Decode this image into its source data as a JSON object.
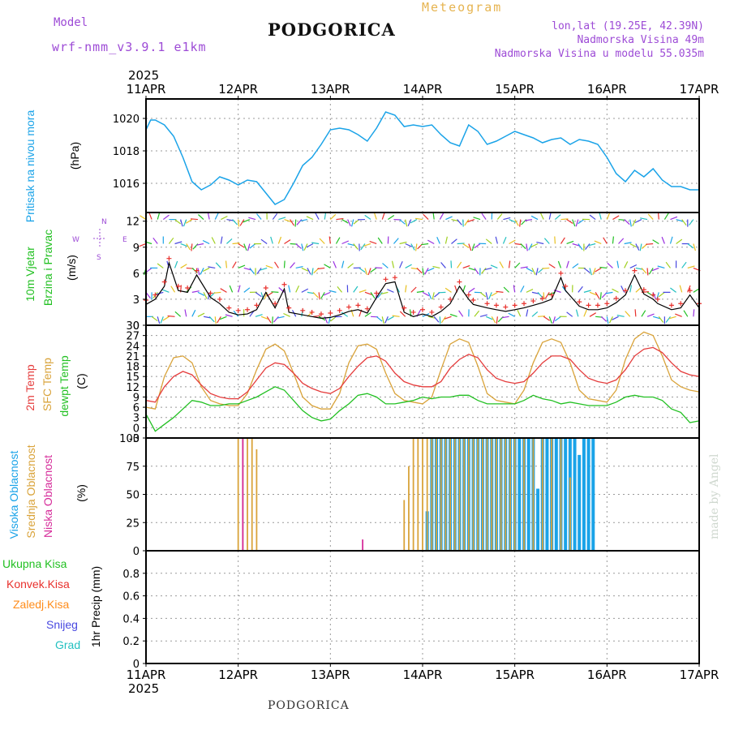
{
  "header": {
    "model_label": "Model",
    "model_name": "wrf-nmm_v3.9.1 e1km",
    "title": "PODGORICA",
    "meteogram": "Meteogram",
    "lonlat": "lon,lat (19.25E, 42.39N)",
    "altitude": "Nadmorska Visina 49m",
    "model_altitude": "Nadmorska Visina u modelu 55.035m"
  },
  "footer": {
    "place": "PODGORICA",
    "made_by": "made by Angel"
  },
  "time_axis": {
    "year": "2025",
    "days": [
      "11APR",
      "12APR",
      "13APR",
      "14APR",
      "15APR",
      "16APR",
      "17APR"
    ]
  },
  "colors": {
    "pressure": "#1aa3e8",
    "wind_speed": "#000000",
    "wind_gust": "#e8302c",
    "temp2m": "#e53c3c",
    "sfc_temp": "#d9a33a",
    "dewpoint": "#22c022",
    "cloud_high": "#1aa3e8",
    "cloud_mid": "#d9a33a",
    "cloud_low": "#d62c9a",
    "precip_total": "#22c022",
    "precip_conv": "#e8302c",
    "precip_frozen": "#ff8c1a",
    "snow": "#4848e0",
    "hail": "#22c0c0",
    "compass": "#9d4bd6"
  },
  "panels": {
    "pressure": {
      "label": "Pritisak na nivou mora",
      "unit": "(hPa)"
    },
    "wind": {
      "label1": "10m Vjetar",
      "label2": "Brzina i Pravac",
      "unit": "(m/s)",
      "compass": {
        "n": "N",
        "s": "S",
        "e": "E",
        "w": "W"
      }
    },
    "temperature": {
      "label1": "2m Temp",
      "label2": "SFC Temp",
      "label3": "dewpt Temp",
      "unit": "(C)"
    },
    "clouds": {
      "label1": "Visoka Oblacnost",
      "label2": "Srednja Oblacnost",
      "label3": "Niska Oblacnost",
      "unit": "(%)"
    },
    "precip": {
      "unit": "1hr Precip (mm)",
      "legend": [
        "Ukupna Kisa",
        "Konvek.Kisa",
        "Zaledj.Kisa",
        "Snijeg",
        "Grad"
      ]
    }
  },
  "chart_data": [
    {
      "type": "line",
      "panel": "pressure",
      "ylabel": "(hPa)",
      "ylim": [
        1014.2,
        1021.2
      ],
      "yticks": [
        1016,
        1018,
        1020
      ],
      "grid": true,
      "x_unit": "days since 11APR 00UTC",
      "series": [
        {
          "name": "Pritisak na nivou mora",
          "x": [
            0,
            0.05,
            0.1,
            0.2,
            0.3,
            0.4,
            0.5,
            0.6,
            0.7,
            0.8,
            0.9,
            1.0,
            1.1,
            1.2,
            1.3,
            1.4,
            1.5,
            1.6,
            1.7,
            1.8,
            1.9,
            2.0,
            2.1,
            2.2,
            2.3,
            2.4,
            2.5,
            2.6,
            2.7,
            2.8,
            2.9,
            3.0,
            3.1,
            3.2,
            3.3,
            3.4,
            3.5,
            3.6,
            3.7,
            3.8,
            3.9,
            4.0,
            4.1,
            4.2,
            4.3,
            4.4,
            4.5,
            4.6,
            4.7,
            4.8,
            4.9,
            5.0,
            5.1,
            5.2,
            5.3,
            5.4,
            5.5,
            5.6,
            5.7,
            5.8,
            5.9,
            6.0
          ],
          "y": [
            1019.3,
            1019.9,
            1019.9,
            1019.6,
            1018.9,
            1017.6,
            1016.1,
            1015.6,
            1015.9,
            1016.4,
            1016.2,
            1015.9,
            1016.2,
            1016.1,
            1015.4,
            1014.7,
            1015.0,
            1016.0,
            1017.1,
            1017.6,
            1018.4,
            1019.3,
            1019.4,
            1019.3,
            1019.0,
            1018.6,
            1019.4,
            1020.4,
            1020.2,
            1019.5,
            1019.6,
            1019.5,
            1019.6,
            1019.0,
            1018.5,
            1018.3,
            1019.6,
            1019.2,
            1018.4,
            1018.6,
            1018.9,
            1019.2,
            1019.0,
            1018.8,
            1018.5,
            1018.7,
            1018.8,
            1018.4,
            1018.7,
            1018.6,
            1018.4,
            1017.6,
            1016.6,
            1016.1,
            1016.8,
            1016.4,
            1016.9,
            1016.2,
            1015.8,
            1015.8,
            1015.6,
            1015.6
          ]
        }
      ]
    },
    {
      "type": "line",
      "panel": "wind",
      "ylabel": "(m/s)",
      "ylim": [
        0,
        13
      ],
      "yticks": [
        0,
        3,
        6,
        9,
        12
      ],
      "grid": true,
      "series": [
        {
          "name": "speed",
          "x": [
            0,
            0.1,
            0.2,
            0.25,
            0.35,
            0.45,
            0.55,
            0.7,
            0.8,
            0.9,
            1.0,
            1.1,
            1.2,
            1.3,
            1.4,
            1.5,
            1.55,
            1.7,
            1.8,
            1.9,
            2.0,
            2.1,
            2.2,
            2.3,
            2.4,
            2.5,
            2.6,
            2.7,
            2.8,
            2.9,
            3.0,
            3.1,
            3.2,
            3.3,
            3.4,
            3.5,
            3.55,
            3.7,
            3.8,
            3.9,
            4.0,
            4.1,
            4.2,
            4.3,
            4.4,
            4.5,
            4.55,
            4.7,
            4.8,
            4.9,
            5.0,
            5.1,
            5.2,
            5.3,
            5.4,
            5.5,
            5.55,
            5.7,
            5.8,
            5.9,
            6.0
          ],
          "y": [
            2.4,
            3.0,
            4.5,
            7.2,
            4.0,
            3.8,
            5.8,
            3.2,
            2.5,
            1.5,
            1.2,
            1.3,
            1.8,
            3.8,
            2.0,
            4.2,
            1.5,
            1.2,
            1.0,
            0.8,
            0.9,
            1.2,
            1.6,
            1.8,
            1.4,
            3.2,
            4.8,
            5.0,
            1.5,
            1.0,
            1.3,
            1.0,
            1.6,
            2.5,
            4.5,
            3.0,
            2.4,
            2.0,
            1.8,
            1.6,
            1.8,
            2.0,
            2.3,
            2.6,
            3.0,
            5.5,
            4.0,
            2.2,
            1.8,
            1.8,
            2.0,
            2.6,
            3.5,
            5.8,
            3.6,
            3.0,
            2.5,
            1.8,
            2.0,
            3.5,
            2.0
          ]
        }
      ]
    },
    {
      "type": "line",
      "panel": "temperature",
      "ylabel": "(C)",
      "ylim": [
        -3,
        30
      ],
      "yticks": [
        -3,
        0,
        3,
        6,
        9,
        12,
        15,
        18,
        21,
        24,
        27,
        30
      ],
      "grid": true,
      "series": [
        {
          "name": "2m Temp",
          "x": [
            0,
            0.1,
            0.2,
            0.3,
            0.4,
            0.5,
            0.6,
            0.7,
            0.8,
            0.9,
            1.0,
            1.1,
            1.2,
            1.3,
            1.4,
            1.5,
            1.6,
            1.7,
            1.8,
            1.9,
            2.0,
            2.1,
            2.2,
            2.3,
            2.4,
            2.5,
            2.6,
            2.7,
            2.8,
            2.9,
            3.0,
            3.1,
            3.2,
            3.3,
            3.4,
            3.5,
            3.6,
            3.7,
            3.8,
            3.9,
            4.0,
            4.1,
            4.2,
            4.3,
            4.4,
            4.5,
            4.6,
            4.7,
            4.8,
            4.9,
            5.0,
            5.1,
            5.2,
            5.3,
            5.4,
            5.5,
            5.6,
            5.7,
            5.8,
            5.9,
            6.0
          ],
          "y": [
            8,
            7.5,
            12,
            15,
            16.5,
            15.5,
            12.5,
            10,
            9,
            8.5,
            8.5,
            10.5,
            14,
            17.5,
            19,
            18.5,
            16,
            13,
            11.5,
            10.5,
            10,
            11.5,
            15,
            18,
            20.5,
            21,
            19.5,
            16,
            13.5,
            12.5,
            12,
            12,
            13.5,
            17.5,
            20,
            21.5,
            20.5,
            17,
            14.5,
            13.5,
            13,
            13.5,
            16,
            19,
            21,
            21,
            20,
            17,
            14.5,
            13.5,
            13,
            14,
            17,
            21,
            23,
            23.5,
            22,
            19,
            16.5,
            15.5,
            15
          ]
        },
        {
          "name": "SFC Temp",
          "x": [
            0,
            0.1,
            0.2,
            0.3,
            0.4,
            0.5,
            0.6,
            0.7,
            0.8,
            0.9,
            1.0,
            1.1,
            1.2,
            1.3,
            1.4,
            1.5,
            1.6,
            1.7,
            1.8,
            1.9,
            2.0,
            2.1,
            2.2,
            2.3,
            2.4,
            2.5,
            2.6,
            2.7,
            2.8,
            2.9,
            3.0,
            3.1,
            3.2,
            3.3,
            3.4,
            3.5,
            3.6,
            3.7,
            3.8,
            3.9,
            4.0,
            4.1,
            4.2,
            4.3,
            4.4,
            4.5,
            4.6,
            4.7,
            4.8,
            4.9,
            5.0,
            5.1,
            5.2,
            5.3,
            5.4,
            5.5,
            5.6,
            5.7,
            5.8,
            5.9,
            6.0
          ],
          "y": [
            6,
            5.5,
            15,
            20.5,
            21,
            19,
            12,
            8,
            7,
            6.5,
            6.5,
            10,
            17,
            23,
            24.5,
            22.5,
            16,
            9,
            6.5,
            5.5,
            5.5,
            10,
            19,
            24,
            24.5,
            23,
            16,
            10,
            8,
            7.5,
            7,
            9,
            17,
            24.5,
            26,
            25,
            18,
            10,
            8,
            7.5,
            7,
            11,
            19,
            25,
            26,
            25,
            19,
            11,
            8.5,
            8,
            7.5,
            11,
            20,
            26,
            28,
            27,
            21,
            14,
            12,
            11,
            10.5
          ]
        },
        {
          "name": "dewpt Temp",
          "x": [
            0,
            0.1,
            0.2,
            0.3,
            0.4,
            0.5,
            0.6,
            0.7,
            0.8,
            0.9,
            1.0,
            1.1,
            1.2,
            1.3,
            1.4,
            1.5,
            1.6,
            1.7,
            1.8,
            1.9,
            2.0,
            2.1,
            2.2,
            2.3,
            2.4,
            2.5,
            2.6,
            2.7,
            2.8,
            2.9,
            3.0,
            3.1,
            3.2,
            3.3,
            3.4,
            3.5,
            3.6,
            3.7,
            3.8,
            3.9,
            4.0,
            4.1,
            4.2,
            4.3,
            4.4,
            4.5,
            4.6,
            4.7,
            4.8,
            4.9,
            5.0,
            5.1,
            5.2,
            5.3,
            5.4,
            5.5,
            5.6,
            5.7,
            5.8,
            5.9,
            6.0
          ],
          "y": [
            4,
            -1,
            1,
            3,
            5.5,
            8,
            7.5,
            6.5,
            6.5,
            7,
            7,
            8,
            9,
            10.5,
            12,
            11,
            8,
            5,
            3,
            2,
            2.5,
            5,
            7,
            9.5,
            10,
            9,
            7,
            7,
            7.5,
            8,
            9,
            8.5,
            9,
            9,
            9.5,
            9.5,
            8,
            7,
            7,
            7,
            7,
            8,
            9.5,
            8.5,
            8,
            7,
            7.5,
            7,
            6.5,
            6.5,
            6.5,
            7.5,
            9,
            9.5,
            9,
            9,
            8,
            5.5,
            4.5,
            1.5,
            2
          ]
        }
      ]
    },
    {
      "type": "bar",
      "panel": "clouds",
      "ylabel": "(%)",
      "ylim": [
        0,
        100
      ],
      "yticks": [
        0,
        25,
        50,
        75,
        100
      ],
      "grid": true,
      "series": [
        {
          "name": "Visoka Oblacnost",
          "x": [
            3.05,
            3.1,
            3.15,
            3.2,
            3.25,
            3.3,
            3.35,
            3.4,
            3.45,
            3.5,
            3.55,
            3.6,
            3.65,
            3.7,
            3.75,
            3.8,
            3.85,
            3.9,
            3.95,
            4.0,
            4.05,
            4.1,
            4.15,
            4.2,
            4.25,
            4.3,
            4.35,
            4.4,
            4.45,
            4.5,
            4.55,
            4.6,
            4.65,
            4.7,
            4.75,
            4.8,
            4.85
          ],
          "y": [
            35,
            100,
            100,
            100,
            100,
            100,
            100,
            100,
            100,
            100,
            100,
            100,
            100,
            100,
            100,
            100,
            100,
            100,
            100,
            100,
            100,
            100,
            100,
            100,
            55,
            100,
            100,
            100,
            100,
            100,
            100,
            100,
            100,
            85,
            100,
            100,
            100
          ]
        },
        {
          "name": "Srednja Oblacnost",
          "x": [
            1.0,
            1.05,
            1.1,
            1.15,
            1.2,
            2.8,
            2.85,
            2.9,
            2.95,
            3.0,
            3.05,
            3.1,
            3.15,
            3.2,
            3.25,
            3.3,
            3.35,
            3.4,
            3.45,
            3.5,
            3.55,
            3.6,
            3.65,
            3.7,
            3.75,
            3.8,
            3.85,
            3.9,
            3.95,
            4.0,
            4.1,
            4.2,
            4.3,
            4.4,
            4.5,
            4.6
          ],
          "y": [
            100,
            100,
            100,
            100,
            90,
            45,
            75,
            100,
            100,
            100,
            100,
            100,
            100,
            100,
            100,
            100,
            100,
            100,
            100,
            100,
            100,
            100,
            100,
            100,
            100,
            100,
            100,
            100,
            100,
            100,
            100,
            100,
            100,
            100,
            100,
            65
          ]
        },
        {
          "name": "Niska Oblacnost",
          "x": [
            1.05,
            2.35
          ],
          "y": [
            100,
            10
          ]
        }
      ]
    },
    {
      "type": "bar",
      "panel": "precip",
      "ylabel": "1hr Precip (mm)",
      "ylim": [
        0,
        1
      ],
      "yticks": [
        0,
        0.2,
        0.4,
        0.6,
        0.8
      ],
      "grid": true,
      "series": [
        {
          "name": "Ukupna Kisa",
          "values": []
        },
        {
          "name": "Konvek.Kisa",
          "values": []
        },
        {
          "name": "Zaledj.Kisa",
          "values": []
        },
        {
          "name": "Snijeg",
          "values": []
        },
        {
          "name": "Grad",
          "values": []
        }
      ]
    }
  ]
}
